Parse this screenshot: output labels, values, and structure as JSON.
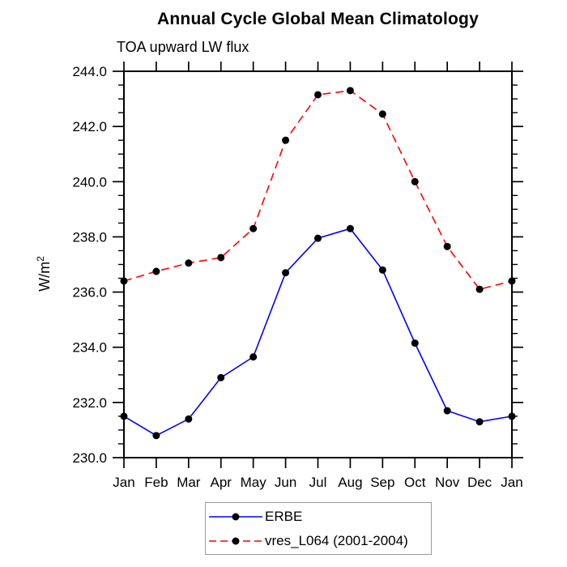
{
  "chart_data": {
    "type": "line",
    "title": "Annual Cycle Global Mean Climatology",
    "subtitle": "TOA upward LW flux",
    "ylabel": "W/m",
    "ylabel_sup": "2",
    "categories": [
      "Jan",
      "Feb",
      "Mar",
      "Apr",
      "May",
      "Jun",
      "Jul",
      "Aug",
      "Sep",
      "Oct",
      "Nov",
      "Dec",
      "Jan"
    ],
    "ylim": [
      230.0,
      244.0
    ],
    "ytick_interval": 2.0,
    "minor_tick_interval": 0.5,
    "yticks": [
      230.0,
      232.0,
      234.0,
      236.0,
      238.0,
      240.0,
      242.0,
      244.0
    ],
    "ytick_labels": [
      "230.0",
      "232.0",
      "234.0",
      "236.0",
      "238.0",
      "240.0",
      "242.0",
      "244.0"
    ],
    "grid": false,
    "legend_position": "bottom",
    "marker": "filled-circle",
    "marker_color": "#000000",
    "series": [
      {
        "name": "ERBE",
        "style": "solid",
        "color": "#0000ff",
        "values": [
          231.5,
          230.8,
          231.4,
          232.9,
          233.65,
          236.7,
          237.95,
          238.3,
          236.8,
          234.15,
          231.7,
          231.3,
          231.5
        ]
      },
      {
        "name": "vres_L064 (2001-2004)",
        "style": "dashed",
        "color": "#ff0000",
        "values": [
          236.4,
          236.75,
          237.05,
          237.25,
          238.3,
          241.5,
          243.15,
          243.3,
          242.45,
          240.0,
          237.65,
          236.1,
          236.4
        ]
      }
    ]
  }
}
